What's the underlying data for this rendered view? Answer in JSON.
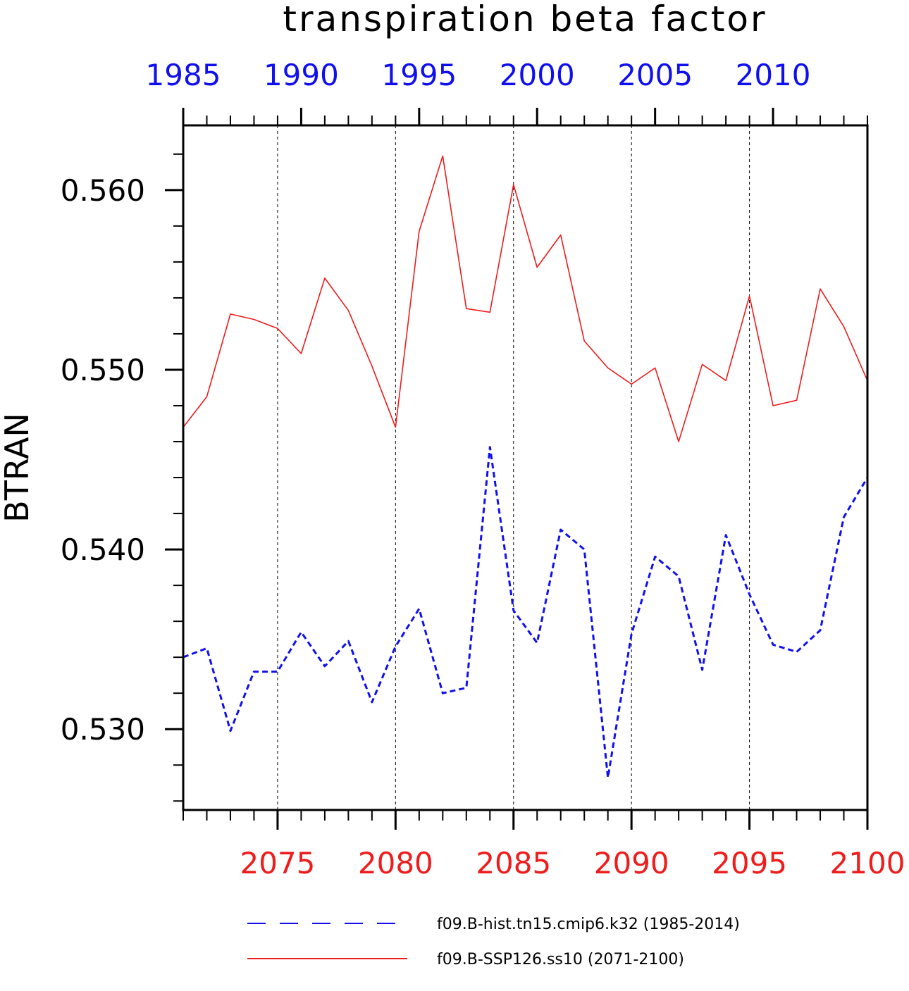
{
  "chart_data": {
    "type": "line",
    "title": "transpiration beta factor",
    "ylabel": "BTRAN",
    "ylim": [
      0.5255,
      0.5636
    ],
    "yticks": [
      0.53,
      0.54,
      0.55,
      0.56
    ],
    "ytick_labels": [
      "0.530",
      "0.540",
      "0.550",
      "0.560"
    ],
    "y_minor_step": 0.002,
    "grid": "vertical dashed at major x ticks",
    "bottom_axis": {
      "xlim": [
        2071,
        2100
      ],
      "ticks": [
        2075,
        2080,
        2085,
        2090,
        2095,
        2100
      ],
      "tick_labels": [
        "2075",
        "2080",
        "2085",
        "2090",
        "2095",
        "2100"
      ],
      "color": "#ee1c1c"
    },
    "top_axis": {
      "xlim": [
        1985,
        2014
      ],
      "ticks": [
        1985,
        1990,
        1995,
        2000,
        2005,
        2010
      ],
      "tick_labels": [
        "1985",
        "1990",
        "1995",
        "2000",
        "2005",
        "2010"
      ],
      "color": "#1010ee"
    },
    "legend_position": "bottom",
    "series": [
      {
        "name": "f09.B-hist.tn15.cmip6.k32 (1985-2014)",
        "axis": "top",
        "style": "dashed",
        "color": "#1010ee",
        "x": [
          1985,
          1986,
          1987,
          1988,
          1989,
          1990,
          1991,
          1992,
          1993,
          1994,
          1995,
          1996,
          1997,
          1998,
          1999,
          2000,
          2001,
          2002,
          2003,
          2004,
          2005,
          2006,
          2007,
          2008,
          2009,
          2010,
          2011,
          2012,
          2013,
          2014
        ],
        "values": [
          0.534,
          0.5345,
          0.5299,
          0.5332,
          0.5332,
          0.5354,
          0.5335,
          0.5349,
          0.5315,
          0.5346,
          0.5367,
          0.532,
          0.5323,
          0.5457,
          0.5366,
          0.5348,
          0.5411,
          0.54,
          0.5273,
          0.5353,
          0.5396,
          0.5385,
          0.5333,
          0.5408,
          0.5375,
          0.5347,
          0.5343,
          0.5355,
          0.5418,
          0.544
        ]
      },
      {
        "name": "f09.B-SSP126.ss10 (2071-2100)",
        "axis": "bottom",
        "style": "solid",
        "color": "#ee1c1c",
        "x": [
          2071,
          2072,
          2073,
          2074,
          2075,
          2076,
          2077,
          2078,
          2079,
          2080,
          2081,
          2082,
          2083,
          2084,
          2085,
          2086,
          2087,
          2088,
          2089,
          2090,
          2091,
          2092,
          2093,
          2094,
          2095,
          2096,
          2097,
          2098,
          2099,
          2100
        ],
        "values": [
          0.5468,
          0.5485,
          0.5531,
          0.5528,
          0.5523,
          0.5509,
          0.5551,
          0.5533,
          0.5502,
          0.5468,
          0.5577,
          0.5619,
          0.5534,
          0.5532,
          0.5603,
          0.5557,
          0.5575,
          0.5516,
          0.5501,
          0.5492,
          0.5501,
          0.546,
          0.5503,
          0.5494,
          0.5541,
          0.548,
          0.5483,
          0.5545,
          0.5524,
          0.5494
        ]
      }
    ]
  }
}
